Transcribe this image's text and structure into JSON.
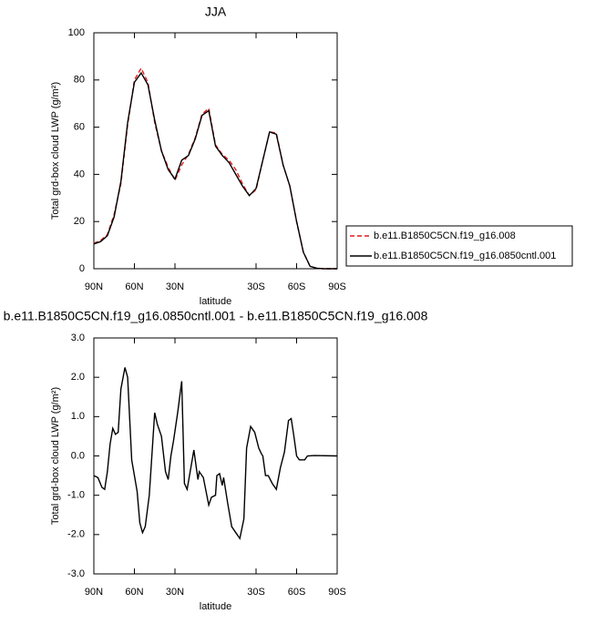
{
  "chart_data": [
    {
      "type": "line",
      "title": "JJA",
      "xlabel": "latitude",
      "ylabel": "Total grd-box cloud LWP (g/m²)",
      "x": [
        90,
        85,
        80,
        75,
        70,
        65,
        60,
        55,
        50,
        45,
        40,
        35,
        30,
        25,
        20,
        15,
        10,
        5,
        0,
        -5,
        -10,
        -15,
        -20,
        -25,
        -30,
        -35,
        -40,
        -45,
        -50,
        -55,
        -60,
        -65,
        -70,
        -75,
        -80,
        -85,
        -90
      ],
      "series": [
        {
          "name": "b.e11.B1850C5CN.f19_g16.008",
          "color": "#e41a1c",
          "line_style": "dashed",
          "values": [
            10.8,
            12,
            14.5,
            23,
            36,
            61,
            80,
            85,
            79,
            62,
            50,
            43,
            37.5,
            44,
            48.5,
            55.5,
            65.5,
            68,
            52.5,
            48.5,
            46,
            42,
            36,
            31,
            33.5,
            46,
            58,
            57.5,
            44,
            35,
            20,
            7,
            1,
            0.2,
            0,
            0,
            0
          ]
        },
        {
          "name": "b.e11.B1850C5CN.f19_g16.0850cntl.001",
          "color": "#000000",
          "line_style": "solid",
          "values": [
            10.5,
            11.5,
            14,
            22,
            37,
            62,
            79,
            83,
            78,
            63,
            50,
            42,
            38,
            46,
            48,
            55,
            65,
            67,
            52,
            48,
            45,
            40,
            35,
            31,
            34,
            46,
            58,
            57,
            44,
            35,
            20,
            7,
            1,
            0.2,
            0,
            0,
            0
          ]
        }
      ],
      "xlim": [
        90,
        -90
      ],
      "xticks": [
        {
          "value": 90,
          "label": "90N"
        },
        {
          "value": 60,
          "label": "60N"
        },
        {
          "value": 30,
          "label": "30N"
        },
        {
          "value": -30,
          "label": "30S"
        },
        {
          "value": -60,
          "label": "60S"
        },
        {
          "value": -90,
          "label": "90S"
        }
      ],
      "ylim": [
        0,
        100
      ],
      "yticks": [
        0,
        20,
        40,
        60,
        80,
        100
      ],
      "legend": "outside-right"
    },
    {
      "type": "line",
      "title": "b.e11.B1850C5CN.f19_g16.0850cntl.001 - b.e11.B1850C5CN.f19_g16.008",
      "xlabel": "latitude",
      "ylabel": "Total grd-box cloud LWP (g/m²)",
      "x": [
        90,
        87,
        84,
        82,
        80,
        78,
        76,
        74,
        72,
        70,
        67,
        65,
        62,
        58,
        56,
        54,
        52,
        49,
        45,
        43,
        40,
        37,
        35,
        33,
        31,
        28,
        25,
        23,
        21,
        16,
        15,
        13,
        12,
        9,
        5,
        3,
        0,
        -1,
        -3,
        -5,
        -6,
        -9,
        -12,
        -16,
        -18,
        -21,
        -23,
        -26,
        -29,
        -32,
        -34,
        -35,
        -37,
        -39,
        -42,
        -45,
        -48,
        -51,
        -54,
        -56,
        -58,
        -60,
        -62,
        -66,
        -68,
        -73,
        -90
      ],
      "series": [
        {
          "name": null,
          "color": "#000000",
          "line_style": "solid",
          "values": [
            -0.5,
            -0.55,
            -0.8,
            -0.85,
            -0.4,
            0.3,
            0.7,
            0.55,
            0.6,
            1.7,
            2.25,
            2.0,
            -0.1,
            -0.9,
            -1.7,
            -1.95,
            -1.8,
            -1.0,
            1.1,
            0.8,
            0.5,
            -0.4,
            -0.6,
            0,
            0.4,
            1.1,
            1.9,
            -0.7,
            -0.85,
            0.15,
            -0.1,
            -0.6,
            -0.4,
            -0.55,
            -1.25,
            -1.05,
            -1.0,
            -0.5,
            -0.45,
            -0.75,
            -0.55,
            -1.2,
            -1.8,
            -2.0,
            -2.1,
            -1.6,
            0.2,
            0.75,
            0.6,
            0.2,
            0.05,
            0.0,
            -0.5,
            -0.5,
            -0.7,
            -0.85,
            -0.3,
            0.1,
            0.9,
            0.95,
            0.5,
            0.0,
            -0.1,
            -0.1,
            0,
            0.01,
            0
          ]
        }
      ],
      "xlim": [
        90,
        -90
      ],
      "xticks": [
        {
          "value": 90,
          "label": "90N"
        },
        {
          "value": 60,
          "label": "60N"
        },
        {
          "value": 30,
          "label": "30N"
        },
        {
          "value": -30,
          "label": "30S"
        },
        {
          "value": -60,
          "label": "60S"
        },
        {
          "value": -90,
          "label": "90S"
        }
      ],
      "ylim": [
        -3,
        3
      ],
      "yticks": [
        {
          "value": -3,
          "label": "-3.0"
        },
        {
          "value": -2,
          "label": "-2.0"
        },
        {
          "value": -1,
          "label": "-1.0"
        },
        {
          "value": 0,
          "label": "0.0"
        },
        {
          "value": 1,
          "label": "1.0"
        },
        {
          "value": 2,
          "label": "2.0"
        },
        {
          "value": 3,
          "label": "3.0"
        }
      ]
    }
  ]
}
